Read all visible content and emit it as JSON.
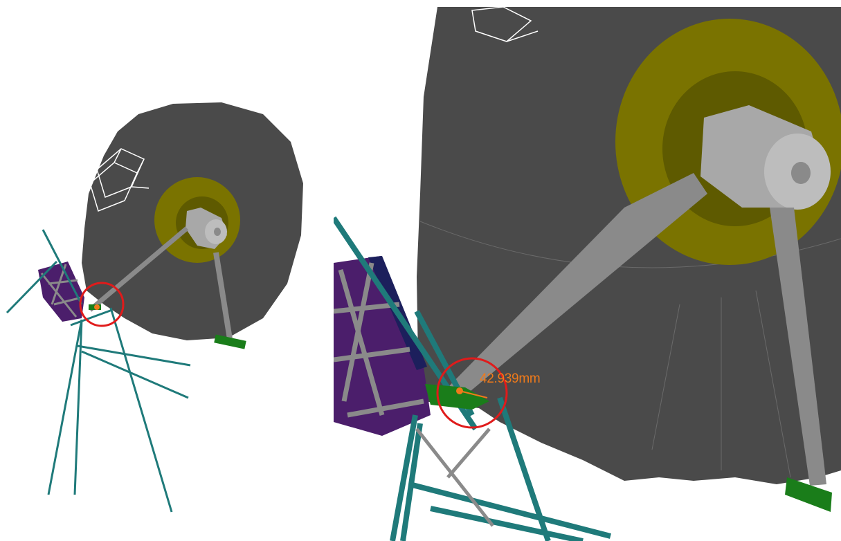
{
  "views": {
    "overview": {
      "name": "overview-view"
    },
    "detail": {
      "name": "zoomed-detail-view"
    }
  },
  "measurement": {
    "label": "42.939mm",
    "color": "#f07a1a"
  },
  "colors": {
    "antenna_body": "#4a4a4a",
    "hub_ring": "#7a7300",
    "hub_cylinder": "#a8a8a8",
    "struts": "#1f7a7a",
    "frame_panel": "#4b1e6b",
    "frame_edge": "#1c1f5c",
    "mount_base": "#1a7d1a",
    "highlight_circle": "#e01b1b",
    "wireframe": "#ffffff"
  }
}
